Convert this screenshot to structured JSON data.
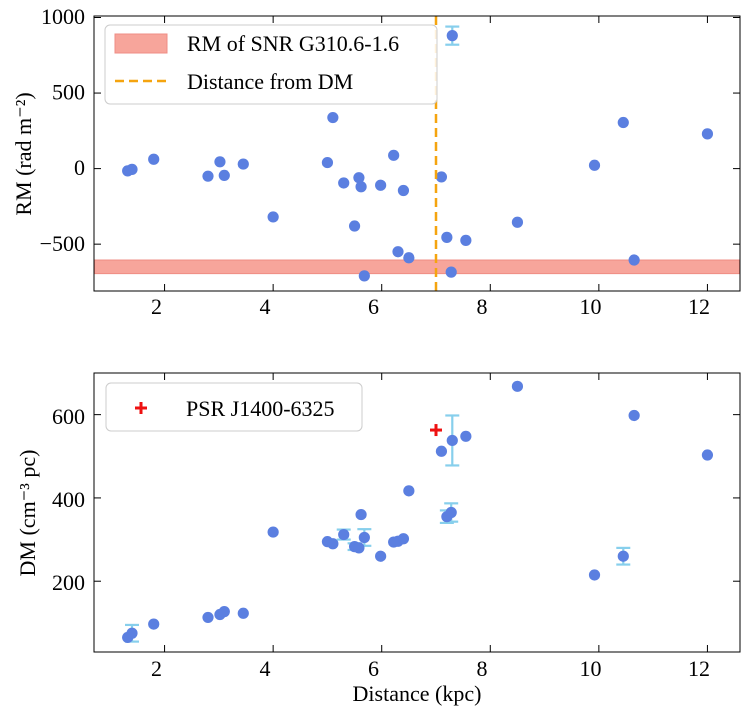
{
  "colors": {
    "point": "#5b7fe0",
    "errorbar": "#87cfec",
    "band_fill": "#f7a59b",
    "band_edge": "#ef8d84",
    "vline": "#f5a40f",
    "psr_marker": "#ee1111",
    "axis": "#000000"
  },
  "chart_data": [
    {
      "type": "scatter",
      "name": "rm-vs-distance",
      "xlabel": "",
      "ylabel": "RM (rad m⁻²)",
      "xlim": [
        0.7,
        12.6
      ],
      "ylim": [
        -810,
        1010
      ],
      "xticks": [
        2,
        4,
        6,
        8,
        10,
        12
      ],
      "xtick_labels": [
        "2",
        "4",
        "6",
        "8",
        "10",
        "12"
      ],
      "yticks": [
        -500,
        0,
        500,
        1000
      ],
      "ytick_labels": [
        "−500",
        "0",
        "500",
        "1000"
      ],
      "legend_position": "top-left",
      "band": {
        "label": "RM of SNR G310.6-1.6",
        "y0": -695,
        "y1": -605
      },
      "vline": {
        "label": "Distance from DM",
        "x": 7.0
      },
      "points": [
        {
          "x": 1.32,
          "y": -15,
          "xerr": 0.07,
          "yerr": 0
        },
        {
          "x": 1.4,
          "y": -5,
          "xerr": 0.07,
          "yerr": 0
        },
        {
          "x": 1.8,
          "y": 62,
          "xerr": 0.07,
          "yerr": 0
        },
        {
          "x": 2.8,
          "y": -50,
          "xerr": 0.07,
          "yerr": 0
        },
        {
          "x": 3.02,
          "y": 45,
          "xerr": 0.07,
          "yerr": 0
        },
        {
          "x": 3.1,
          "y": -45,
          "xerr": 0.07,
          "yerr": 0
        },
        {
          "x": 3.45,
          "y": 30,
          "xerr": 0.07,
          "yerr": 0
        },
        {
          "x": 4.0,
          "y": -320,
          "xerr": 0.07,
          "yerr": 0
        },
        {
          "x": 5.0,
          "y": 40,
          "xerr": 0.07,
          "yerr": 0
        },
        {
          "x": 5.1,
          "y": 338,
          "xerr": 0.07,
          "yerr": 0
        },
        {
          "x": 5.3,
          "y": -95,
          "xerr": 0.07,
          "yerr": 0
        },
        {
          "x": 5.5,
          "y": -380,
          "xerr": 0.07,
          "yerr": 0
        },
        {
          "x": 5.58,
          "y": -60,
          "xerr": 0.07,
          "yerr": 0
        },
        {
          "x": 5.62,
          "y": -120,
          "xerr": 0.07,
          "yerr": 0
        },
        {
          "x": 5.68,
          "y": -710,
          "xerr": 0.07,
          "yerr": 0
        },
        {
          "x": 5.98,
          "y": -110,
          "xerr": 0.07,
          "yerr": 0
        },
        {
          "x": 6.22,
          "y": 88,
          "xerr": 0.07,
          "yerr": 0
        },
        {
          "x": 6.3,
          "y": -550,
          "xerr": 0.07,
          "yerr": 0
        },
        {
          "x": 6.4,
          "y": -145,
          "xerr": 0.07,
          "yerr": 0
        },
        {
          "x": 6.5,
          "y": -590,
          "xerr": 0.07,
          "yerr": 0
        },
        {
          "x": 7.1,
          "y": -55,
          "xerr": 0.07,
          "yerr": 0
        },
        {
          "x": 7.2,
          "y": -455,
          "xerr": 0.07,
          "yerr": 0
        },
        {
          "x": 7.28,
          "y": -685,
          "xerr": 0.07,
          "yerr": 0
        },
        {
          "x": 7.3,
          "y": 880,
          "xerr": 0.07,
          "yerr": 60
        },
        {
          "x": 7.55,
          "y": -475,
          "xerr": 0.07,
          "yerr": 0
        },
        {
          "x": 8.5,
          "y": -355,
          "xerr": 0.07,
          "yerr": 0
        },
        {
          "x": 9.92,
          "y": 22,
          "xerr": 0.07,
          "yerr": 0
        },
        {
          "x": 10.45,
          "y": 305,
          "xerr": 0.07,
          "yerr": 0
        },
        {
          "x": 10.65,
          "y": -605,
          "xerr": 0.07,
          "yerr": 0
        },
        {
          "x": 12.0,
          "y": 230,
          "xerr": 0.07,
          "yerr": 0
        }
      ]
    },
    {
      "type": "scatter",
      "name": "dm-vs-distance",
      "xlabel": "Distance (kpc)",
      "ylabel": "DM (cm⁻³ pc)",
      "xlim": [
        0.7,
        12.6
      ],
      "ylim": [
        30,
        700
      ],
      "xticks": [
        2,
        4,
        6,
        8,
        10,
        12
      ],
      "xtick_labels": [
        "2",
        "4",
        "6",
        "8",
        "10",
        "12"
      ],
      "yticks": [
        200,
        400,
        600
      ],
      "ytick_labels": [
        "200",
        "400",
        "600"
      ],
      "legend_position": "top-left",
      "psr": {
        "label": "PSR J1400-6325",
        "x": 7.0,
        "y": 563
      },
      "points": [
        {
          "x": 1.32,
          "y": 65,
          "xerr": 0.07,
          "yerr": 0
        },
        {
          "x": 1.4,
          "y": 75,
          "xerr": 0.07,
          "yerr": 20
        },
        {
          "x": 1.8,
          "y": 97,
          "xerr": 0.07,
          "yerr": 0
        },
        {
          "x": 2.8,
          "y": 113,
          "xerr": 0.07,
          "yerr": 0
        },
        {
          "x": 3.02,
          "y": 120,
          "xerr": 0.07,
          "yerr": 0
        },
        {
          "x": 3.1,
          "y": 127,
          "xerr": 0.07,
          "yerr": 0
        },
        {
          "x": 3.45,
          "y": 123,
          "xerr": 0.07,
          "yerr": 0
        },
        {
          "x": 4.0,
          "y": 318,
          "xerr": 0.07,
          "yerr": 0
        },
        {
          "x": 5.0,
          "y": 295,
          "xerr": 0.07,
          "yerr": 0
        },
        {
          "x": 5.1,
          "y": 290,
          "xerr": 0.07,
          "yerr": 0
        },
        {
          "x": 5.3,
          "y": 312,
          "xerr": 0.07,
          "yerr": 12
        },
        {
          "x": 5.5,
          "y": 283,
          "xerr": 0.07,
          "yerr": 8
        },
        {
          "x": 5.58,
          "y": 280,
          "xerr": 0.07,
          "yerr": 0
        },
        {
          "x": 5.62,
          "y": 360,
          "xerr": 0.07,
          "yerr": 0
        },
        {
          "x": 5.68,
          "y": 305,
          "xerr": 0.07,
          "yerr": 20
        },
        {
          "x": 5.98,
          "y": 260,
          "xerr": 0.07,
          "yerr": 0
        },
        {
          "x": 6.22,
          "y": 294,
          "xerr": 0.07,
          "yerr": 0
        },
        {
          "x": 6.3,
          "y": 296,
          "xerr": 0.07,
          "yerr": 0
        },
        {
          "x": 6.4,
          "y": 302,
          "xerr": 0.07,
          "yerr": 0
        },
        {
          "x": 6.5,
          "y": 417,
          "xerr": 0.07,
          "yerr": 0
        },
        {
          "x": 7.1,
          "y": 512,
          "xerr": 0.07,
          "yerr": 0
        },
        {
          "x": 7.2,
          "y": 355,
          "xerr": 0.07,
          "yerr": 15
        },
        {
          "x": 7.28,
          "y": 365,
          "xerr": 0.07,
          "yerr": 22
        },
        {
          "x": 7.3,
          "y": 538,
          "xerr": 0.07,
          "yerr": 60
        },
        {
          "x": 7.55,
          "y": 548,
          "xerr": 0.07,
          "yerr": 0
        },
        {
          "x": 8.5,
          "y": 668,
          "xerr": 0.07,
          "yerr": 0
        },
        {
          "x": 9.92,
          "y": 215,
          "xerr": 0.07,
          "yerr": 0
        },
        {
          "x": 10.45,
          "y": 260,
          "xerr": 0.07,
          "yerr": 20
        },
        {
          "x": 10.65,
          "y": 598,
          "xerr": 0.07,
          "yerr": 0
        },
        {
          "x": 12.0,
          "y": 503,
          "xerr": 0.07,
          "yerr": 0
        }
      ]
    }
  ]
}
